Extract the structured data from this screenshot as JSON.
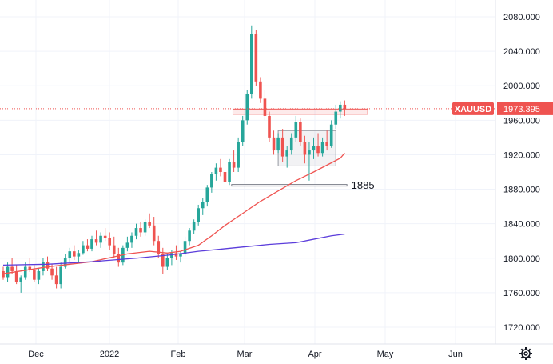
{
  "chart_data": {
    "type": "candlestick",
    "symbol": "XAUUSD",
    "last_price": "1973.395",
    "annotation_level": "1885",
    "y_ticks": [
      1720,
      1760,
      1800,
      1840,
      1880,
      1920,
      1960,
      2000,
      2040,
      2080
    ],
    "y_tick_labels": [
      "1720.000",
      "1760.000",
      "1800.000",
      "1840.000",
      "1880.000",
      "1920.000",
      "1960.000",
      "2000.000",
      "2040.000",
      "2080.000"
    ],
    "ylim": [
      1700,
      2100
    ],
    "x_ticks": [
      "Dec",
      "2022",
      "Feb",
      "Mar",
      "Apr",
      "May",
      "Jun"
    ],
    "grid": true,
    "colors": {
      "up": "#26a69a",
      "down": "#ef5350",
      "ma_fast": "#ef5350",
      "ma_slow": "#5b3ddb",
      "label_bg": "#ef5350"
    },
    "candles": [
      [
        1785,
        1790,
        1775,
        1778
      ],
      [
        1778,
        1795,
        1772,
        1790
      ],
      [
        1790,
        1800,
        1782,
        1785
      ],
      [
        1785,
        1792,
        1770,
        1772
      ],
      [
        1772,
        1780,
        1760,
        1778
      ],
      [
        1778,
        1795,
        1775,
        1790
      ],
      [
        1790,
        1800,
        1784,
        1786
      ],
      [
        1786,
        1792,
        1772,
        1775
      ],
      [
        1775,
        1788,
        1770,
        1785
      ],
      [
        1785,
        1800,
        1780,
        1796
      ],
      [
        1796,
        1802,
        1785,
        1788
      ],
      [
        1788,
        1793,
        1775,
        1780
      ],
      [
        1780,
        1790,
        1765,
        1770
      ],
      [
        1770,
        1795,
        1765,
        1790
      ],
      [
        1790,
        1805,
        1788,
        1800
      ],
      [
        1800,
        1812,
        1795,
        1808
      ],
      [
        1808,
        1815,
        1798,
        1802
      ],
      [
        1802,
        1810,
        1794,
        1806
      ],
      [
        1806,
        1820,
        1804,
        1815
      ],
      [
        1815,
        1822,
        1808,
        1811
      ],
      [
        1811,
        1826,
        1808,
        1822
      ],
      [
        1822,
        1832,
        1815,
        1818
      ],
      [
        1818,
        1830,
        1812,
        1826
      ],
      [
        1826,
        1835,
        1820,
        1823
      ],
      [
        1823,
        1830,
        1810,
        1815
      ],
      [
        1815,
        1825,
        1800,
        1805
      ],
      [
        1805,
        1812,
        1790,
        1795
      ],
      [
        1795,
        1815,
        1792,
        1812
      ],
      [
        1812,
        1825,
        1808,
        1818
      ],
      [
        1818,
        1830,
        1812,
        1826
      ],
      [
        1826,
        1840,
        1822,
        1835
      ],
      [
        1835,
        1842,
        1825,
        1830
      ],
      [
        1830,
        1845,
        1826,
        1842
      ],
      [
        1842,
        1852,
        1835,
        1838
      ],
      [
        1838,
        1848,
        1815,
        1820
      ],
      [
        1820,
        1826,
        1800,
        1805
      ],
      [
        1805,
        1812,
        1782,
        1790
      ],
      [
        1790,
        1805,
        1786,
        1800
      ],
      [
        1800,
        1810,
        1792,
        1806
      ],
      [
        1806,
        1815,
        1798,
        1802
      ],
      [
        1802,
        1808,
        1795,
        1805
      ],
      [
        1805,
        1825,
        1802,
        1820
      ],
      [
        1820,
        1835,
        1815,
        1832
      ],
      [
        1832,
        1845,
        1828,
        1842
      ],
      [
        1842,
        1862,
        1838,
        1858
      ],
      [
        1858,
        1870,
        1850,
        1865
      ],
      [
        1865,
        1885,
        1860,
        1882
      ],
      [
        1882,
        1900,
        1876,
        1898
      ],
      [
        1898,
        1910,
        1890,
        1905
      ],
      [
        1905,
        1915,
        1895,
        1900
      ],
      [
        1900,
        1910,
        1880,
        1888
      ],
      [
        1888,
        1915,
        1885,
        1912
      ],
      [
        1912,
        1925,
        1900,
        1905
      ],
      [
        1905,
        1940,
        1900,
        1935
      ],
      [
        1935,
        1965,
        1930,
        1960
      ],
      [
        1960,
        1995,
        1955,
        1990
      ],
      [
        1990,
        2070,
        1985,
        2060
      ],
      [
        2060,
        2065,
        2000,
        2005
      ],
      [
        2005,
        2010,
        1980,
        1985
      ],
      [
        1985,
        1995,
        1960,
        1965
      ],
      [
        1965,
        1970,
        1935,
        1940
      ],
      [
        1940,
        1948,
        1920,
        1925
      ],
      [
        1925,
        1945,
        1922,
        1940
      ],
      [
        1940,
        1950,
        1912,
        1918
      ],
      [
        1918,
        1930,
        1905,
        1925
      ],
      [
        1925,
        1945,
        1920,
        1940
      ],
      [
        1940,
        1965,
        1935,
        1958
      ],
      [
        1958,
        1962,
        1930,
        1935
      ],
      [
        1935,
        1942,
        1910,
        1920
      ],
      [
        1920,
        1935,
        1890,
        1925
      ],
      [
        1925,
        1940,
        1915,
        1930
      ],
      [
        1930,
        1945,
        1918,
        1922
      ],
      [
        1922,
        1940,
        1918,
        1935
      ],
      [
        1935,
        1948,
        1925,
        1930
      ],
      [
        1930,
        1960,
        1928,
        1955
      ],
      [
        1955,
        1978,
        1950,
        1970
      ],
      [
        1970,
        1982,
        1962,
        1978
      ],
      [
        1978,
        1983,
        1965,
        1973
      ]
    ],
    "ma_fast": [
      [
        0,
        1782
      ],
      [
        10,
        1790
      ],
      [
        20,
        1796
      ],
      [
        28,
        1805
      ],
      [
        33,
        1808
      ],
      [
        37,
        1806
      ],
      [
        40,
        1808
      ],
      [
        44,
        1815
      ],
      [
        47,
        1826
      ],
      [
        50,
        1838
      ],
      [
        54,
        1852
      ],
      [
        58,
        1866
      ],
      [
        62,
        1878
      ],
      [
        66,
        1890
      ],
      [
        70,
        1900
      ],
      [
        73,
        1908
      ],
      [
        76,
        1916
      ],
      [
        77,
        1922
      ]
    ],
    "ma_slow": [
      [
        0,
        1792
      ],
      [
        10,
        1793
      ],
      [
        20,
        1796
      ],
      [
        30,
        1800
      ],
      [
        38,
        1804
      ],
      [
        44,
        1808
      ],
      [
        50,
        1811
      ],
      [
        56,
        1814
      ],
      [
        60,
        1816
      ],
      [
        66,
        1818
      ],
      [
        70,
        1822
      ],
      [
        74,
        1826
      ],
      [
        77,
        1828
      ]
    ]
  }
}
